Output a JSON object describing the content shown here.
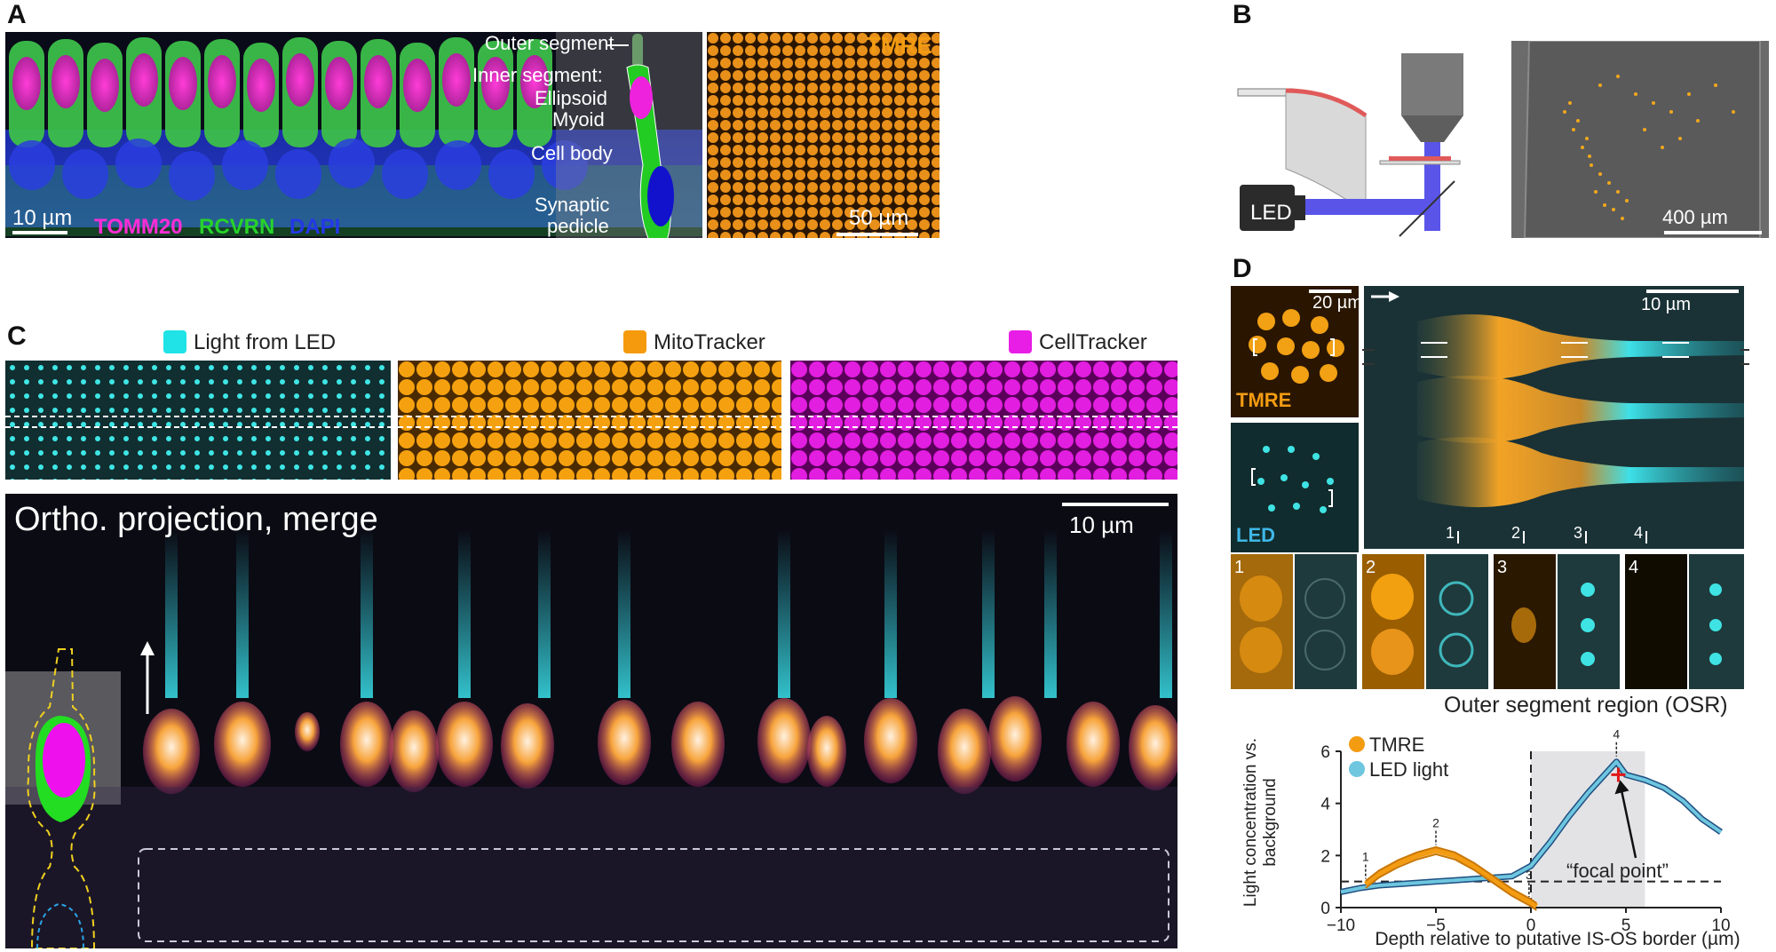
{
  "panels": {
    "a": "A",
    "b": "B",
    "c": "C",
    "d": "D"
  },
  "panel_a": {
    "labels": {
      "outer_segment": "Outer segment",
      "inner_segment": "Inner segment:",
      "ellipsoid": "Ellipsoid",
      "myoid": "Myoid",
      "cell_body": "Cell body",
      "synaptic": "Synaptic",
      "pedicle": "pedicle"
    },
    "scale_left": "10 µm",
    "stains": [
      {
        "text": "TOMM20",
        "color": "#ff2cd6"
      },
      {
        "text": "RCVRN",
        "color": "#27d22a"
      },
      {
        "text": "DAPI",
        "color": "#2338e6"
      }
    ],
    "tmre_label": "TMRE",
    "scale_right": "50 µm"
  },
  "panel_b": {
    "led": "LED",
    "scale": "400 µm"
  },
  "panel_c": {
    "legend": [
      {
        "text": "Light from LED",
        "color": "#1fe3e6"
      },
      {
        "text": "MitoTracker",
        "color": "#f59a0c"
      },
      {
        "text": "CellTracker",
        "color": "#e81ee6"
      }
    ],
    "ortho_title": "Ortho. projection, merge",
    "scale": "10 µm"
  },
  "panel_d": {
    "scale_small": "20 µm",
    "tmre": "TMRE",
    "led": "LED",
    "scale_large": "10 µm",
    "positions": [
      "1",
      "2",
      "3",
      "4"
    ],
    "osr_label": "Outer segment region (OSR)"
  },
  "chart_data": {
    "type": "line",
    "xlabel": "Depth relative to putative IS-OS border (µm)",
    "ylabel": "Light concentration vs. background",
    "xlim": [
      -10,
      10
    ],
    "ylim": [
      0,
      6
    ],
    "xticks": [
      "−10",
      "−5",
      "0",
      "5",
      "10"
    ],
    "yticks": [
      "0",
      "2",
      "4",
      "6"
    ],
    "series": [
      {
        "name": "TMRE",
        "color": "#f39c12",
        "x": [
          -8.7,
          -8,
          -7,
          -6,
          -5,
          -4,
          -3,
          -2,
          -1,
          0,
          0.3
        ],
        "y": [
          0.9,
          1.3,
          1.7,
          2.0,
          2.2,
          2.0,
          1.6,
          1.1,
          0.6,
          0.2,
          0.05
        ]
      },
      {
        "name": "LED light",
        "color": "#6ec6df",
        "x": [
          -10,
          -9,
          -8,
          -7,
          -6,
          -5,
          -4,
          -3,
          -2,
          -1,
          0,
          1,
          2,
          3,
          4,
          4.5,
          5,
          6,
          7,
          8,
          9,
          10
        ],
        "y": [
          0.6,
          0.75,
          0.85,
          0.9,
          0.95,
          1.0,
          1.05,
          1.1,
          1.15,
          1.2,
          1.6,
          2.5,
          3.5,
          4.4,
          5.2,
          5.6,
          5.1,
          4.9,
          4.6,
          4.1,
          3.4,
          2.9
        ]
      }
    ],
    "background_line": 1,
    "osr_shade": [
      0,
      6
    ],
    "markers": [
      "1",
      "2",
      "3",
      "4"
    ],
    "marker_x": [
      -8.7,
      -5,
      -0.1,
      4.5
    ],
    "annotation": "“focal point”",
    "focal_x": 4.6,
    "focal_y": 5.1
  }
}
